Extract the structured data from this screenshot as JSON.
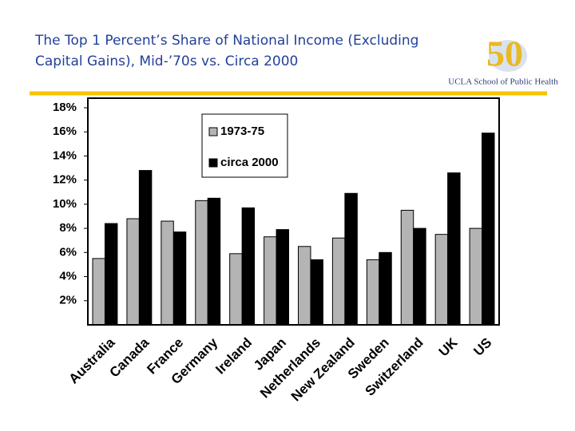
{
  "chart_data": {
    "type": "bar",
    "title": [
      "The Top 1 Percent’s Share of National Income (Excluding",
      "Capital Gains), Mid-’70s vs. Circa 2000"
    ],
    "logo_mark": "50",
    "logo_text": "UCLA School of Public Health",
    "categories": [
      "Australia",
      "Canada",
      "France",
      "Germany",
      "Ireland",
      "Japan",
      "Netherlands",
      "New Zealand",
      "Sweden",
      "Switzerland",
      "UK",
      "US"
    ],
    "series": [
      {
        "name": "1973-75",
        "color": "#b4b4b4",
        "values": [
          5.5,
          8.8,
          8.6,
          10.3,
          5.9,
          7.3,
          6.5,
          7.2,
          5.4,
          9.5,
          7.5,
          8.0
        ]
      },
      {
        "name": "circa 2000",
        "color": "#000000",
        "values": [
          8.4,
          12.8,
          7.7,
          10.5,
          9.7,
          7.9,
          5.4,
          10.9,
          6.0,
          8.0,
          12.6,
          15.9
        ]
      }
    ],
    "ylim": [
      0,
      18
    ],
    "yticks": [
      {
        "value": 2,
        "label": "2%"
      },
      {
        "value": 4,
        "label": "4%"
      },
      {
        "value": 6,
        "label": "6%"
      },
      {
        "value": 8,
        "label": "8%"
      },
      {
        "value": 10,
        "label": "10%"
      },
      {
        "value": 12,
        "label": "12%"
      },
      {
        "value": 14,
        "label": "14%"
      },
      {
        "value": 16,
        "label": "16%"
      },
      {
        "value": 18,
        "label": "18%"
      }
    ],
    "grid": false,
    "legend": "top-left"
  }
}
